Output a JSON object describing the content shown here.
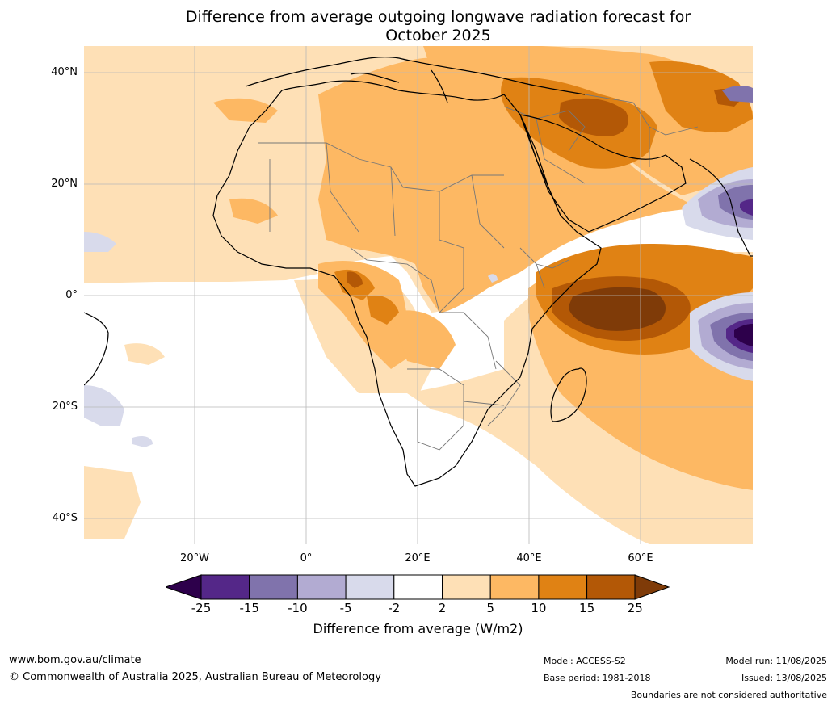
{
  "title_line1": "Difference from average outgoing longwave radiation forecast for",
  "title_line2": "October 2025",
  "lat_ticks": [
    "40°N",
    "20°N",
    "0°",
    "20°S",
    "40°S"
  ],
  "lon_ticks": [
    "20°W",
    "0°",
    "20°E",
    "40°E",
    "60°E"
  ],
  "colorbar": {
    "title": "Difference from average (W/m2)",
    "labels": [
      "-25",
      "-15",
      "-10",
      "-5",
      "-2",
      "2",
      "5",
      "10",
      "15",
      "25"
    ],
    "colors": [
      "#2d004b",
      "#542788",
      "#8073ac",
      "#b2abd2",
      "#d8daeb",
      "#ffffff",
      "#fee0b6",
      "#fdb863",
      "#e08214",
      "#b35806",
      "#7f3b08"
    ]
  },
  "footer": {
    "website": "www.bom.gov.au/climate",
    "copyright": "© Commonwealth of Australia 2025, Australian Bureau of Meteorology",
    "model": "Model: ACCESS-S2",
    "base_period": "Base period: 1981-2018",
    "model_run": "Model run: 11/08/2025",
    "issued": "Issued: 13/08/2025",
    "disclaimer": "Boundaries are not considered authoritative"
  }
}
